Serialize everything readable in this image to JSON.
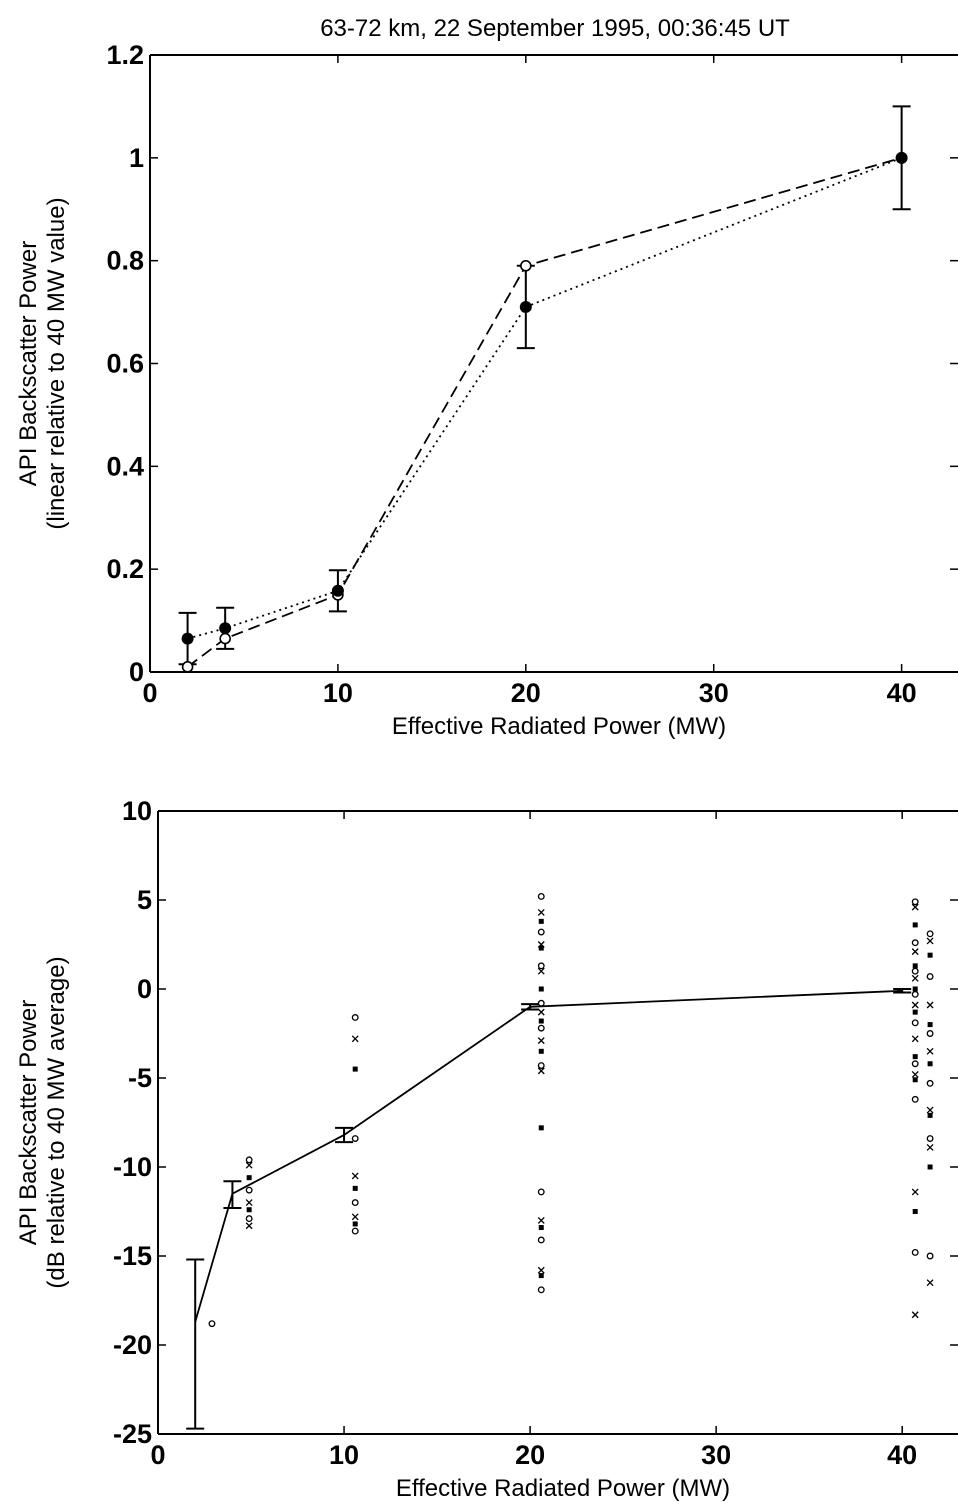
{
  "title": "63-72 km, 22 September 1995, 00:36:45 UT",
  "chart_data": [
    {
      "type": "line",
      "title": "63-72 km, 22 September 1995, 00:36:45 UT",
      "xlabel": "Effective Radiated Power (MW)",
      "ylabel": [
        "API Backscatter Power",
        "(linear relative to 40 MW value)"
      ],
      "xlim": [
        0,
        43
      ],
      "ylim": [
        0,
        1.2
      ],
      "xticks": [
        0,
        10,
        20,
        30,
        40
      ],
      "xtick_labels": [
        "0",
        "10",
        "20",
        "30",
        "40"
      ],
      "yticks": [
        0,
        0.2,
        0.4,
        0.6,
        0.8,
        1.0,
        1.2
      ],
      "ytick_labels": [
        "0",
        "0.2",
        "0.4",
        "0.6",
        "0.8",
        "1",
        "1.2"
      ],
      "grid": false,
      "series": [
        {
          "style": "dotted, filled circles, error bars",
          "x": [
            2,
            4,
            10,
            20,
            40
          ],
          "y": [
            0.065,
            0.085,
            0.158,
            0.71,
            1.0
          ],
          "err_low": [
            0.05,
            0.04,
            0.04,
            0.08,
            0.1
          ],
          "err_high": [
            0.05,
            0.04,
            0.04,
            0.08,
            0.1
          ]
        },
        {
          "style": "dashed, open circles",
          "x": [
            2,
            4,
            10,
            20,
            40
          ],
          "y": [
            0.01,
            0.065,
            0.15,
            0.79,
            1.0
          ]
        }
      ]
    },
    {
      "type": "scatter",
      "xlabel": "Effective Radiated Power (MW)",
      "ylabel": [
        "API Backscatter Power",
        "(dB relative to 40 MW average)"
      ],
      "xlim": [
        0,
        43
      ],
      "ylim": [
        -25,
        10
      ],
      "xticks": [
        0,
        10,
        20,
        30,
        40
      ],
      "xtick_labels": [
        "0",
        "10",
        "20",
        "30",
        "40"
      ],
      "yticks": [
        -25,
        -20,
        -15,
        -10,
        -5,
        0,
        5,
        10
      ],
      "ytick_labels": [
        "-25",
        "-20",
        "-15",
        "-10",
        "-5",
        "0",
        "5",
        "10"
      ],
      "grid": false,
      "average_line": {
        "style": "solid, error bars",
        "x": [
          2,
          4,
          10,
          20,
          40
        ],
        "y": [
          -18.7,
          -11.5,
          -8.2,
          -1.0,
          -0.1
        ],
        "err_low": [
          6.0,
          0.8,
          0.4,
          0.15,
          0.1
        ],
        "err_high": [
          3.5,
          0.7,
          0.4,
          0.15,
          0.1
        ]
      },
      "samples": [
        {
          "x": 2.9,
          "ys": [
            -18.8
          ],
          "marker": "o"
        },
        {
          "x": 4.9,
          "ys": [
            -9.6,
            -9.9,
            -10.6,
            -11.3,
            -12.0,
            -12.4,
            -12.9,
            -13.3
          ],
          "marker": "mixed"
        },
        {
          "x": 10.6,
          "ys": [
            -1.6,
            -2.8,
            -4.5,
            -8.4,
            -10.5,
            -11.2,
            -12.0,
            -12.8,
            -13.2,
            -13.6
          ],
          "marker": "mixed"
        },
        {
          "x": 20.6,
          "ys": [
            5.2,
            4.3,
            3.8,
            3.2,
            2.5,
            2.3,
            1.3,
            1.0,
            0.0,
            -0.8,
            -1.3,
            -1.8,
            -2.2,
            -2.9,
            -3.5,
            -4.3,
            -4.6,
            -7.8,
            -11.4,
            -13.0,
            -13.4,
            -14.1,
            -15.8,
            -16.1,
            -16.9
          ],
          "marker": "mixed"
        },
        {
          "x": 40.7,
          "ys": [
            4.9,
            4.6,
            3.6,
            2.6,
            2.1,
            1.3,
            1.0,
            0.6,
            0.0,
            -0.3,
            -0.9,
            -1.3,
            -1.9,
            -2.8,
            -3.8,
            -4.2,
            -4.8,
            -5.1,
            -6.2,
            -11.4,
            -12.5,
            -14.8,
            -18.3
          ],
          "marker": "mixed"
        },
        {
          "x": 41.5,
          "ys": [
            3.1,
            2.7,
            1.9,
            0.7,
            -0.9,
            -2.0,
            -2.5,
            -3.5,
            -4.2,
            -5.3,
            -6.8,
            -7.1,
            -8.4,
            -8.9,
            -10.0,
            -15.0,
            -16.5
          ],
          "marker": "mixed"
        }
      ]
    }
  ]
}
